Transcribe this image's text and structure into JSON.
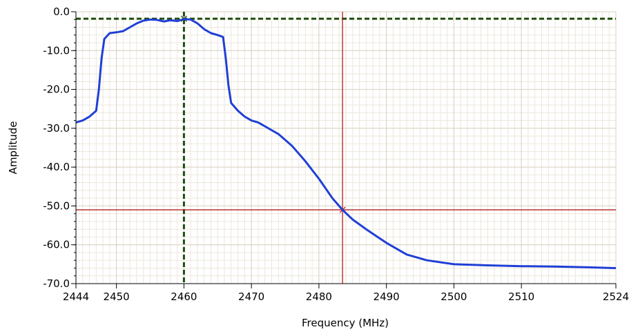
{
  "chart_data": {
    "type": "line",
    "title": "",
    "xlabel": "Frequency (MHz)",
    "ylabel": "Amplitude",
    "xlim": [
      2444,
      2524
    ],
    "ylim": [
      -70,
      0
    ],
    "x_ticks": [
      2444,
      2450,
      2460,
      2470,
      2480,
      2490,
      2500,
      2510,
      2524
    ],
    "x_tick_labels": [
      "2444",
      "2450",
      "2460",
      "2470",
      "2480",
      "2490",
      "2500",
      "2510",
      "2524"
    ],
    "y_ticks": [
      0,
      -10,
      -20,
      -30,
      -40,
      -50,
      -60,
      -70
    ],
    "y_tick_labels": [
      "0.0",
      "-10.0",
      "-20.0",
      "-30.0",
      "-40.0",
      "-50.0",
      "-60.0",
      "-70.0"
    ],
    "grid": true,
    "legend": "none",
    "colors": {
      "trace": "#1f3fd6",
      "cursor_red": "#b01c1c",
      "cursor_green": "#1e4d0e",
      "grid_major": "#d9d2c2",
      "grid_minor": "#ece7dc"
    },
    "series": [
      {
        "x": [
          2444,
          2445,
          2446,
          2447,
          2447.4,
          2447.8,
          2448.2,
          2449,
          2450,
          2451,
          2452,
          2453,
          2454,
          2455,
          2456,
          2457,
          2458,
          2459,
          2460,
          2461,
          2462,
          2463,
          2464,
          2465,
          2465.8,
          2466.2,
          2466.6,
          2467,
          2468,
          2469,
          2470,
          2471,
          2472,
          2474,
          2476,
          2478,
          2480,
          2482,
          2483.5,
          2485,
          2487,
          2490,
          2493,
          2496,
          2500,
          2505,
          2510,
          2515,
          2520,
          2524
        ],
        "y": [
          -28.5,
          -28,
          -27,
          -25.5,
          -20,
          -12,
          -7,
          -5.5,
          -5.3,
          -5,
          -4,
          -3,
          -2.3,
          -2,
          -2.1,
          -2.5,
          -2.2,
          -2.4,
          -1.9,
          -2,
          -3,
          -4.5,
          -5.5,
          -6,
          -6.5,
          -12,
          -19,
          -23.5,
          -25.5,
          -27,
          -28,
          -28.5,
          -29.5,
          -31.5,
          -34.5,
          -38.5,
          -43,
          -48,
          -51,
          -53.5,
          -56,
          -59.5,
          -62.5,
          -64,
          -65,
          -65.3,
          -65.5,
          -65.6,
          -65.8,
          -66
        ]
      }
    ],
    "cursors": [
      {
        "x": 2460,
        "y": -1.8,
        "color": "green",
        "style": "dashed"
      },
      {
        "x": 2483.5,
        "y": -51,
        "color": "red",
        "style": "solid"
      }
    ]
  }
}
